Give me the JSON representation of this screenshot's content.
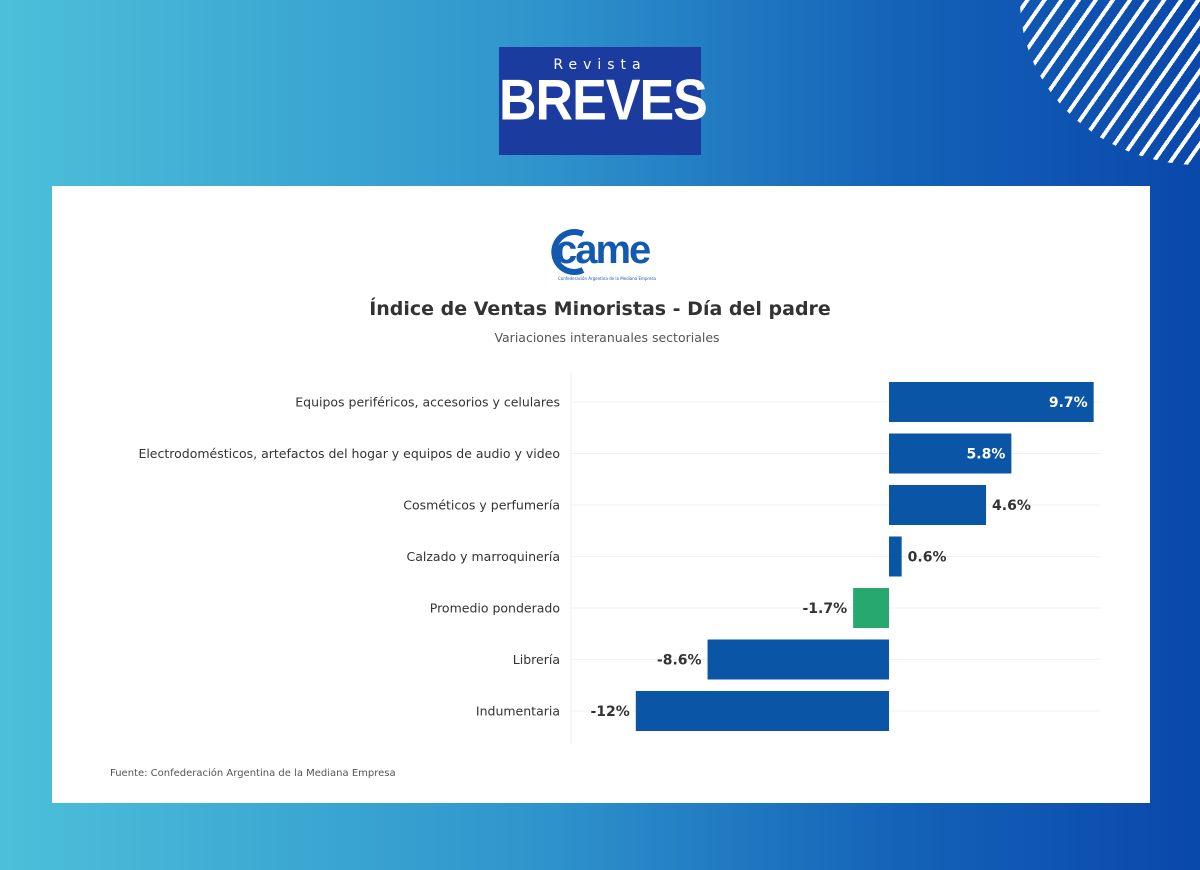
{
  "brand": {
    "top": "Revista",
    "name": "BREVES"
  },
  "came_logo": {
    "name": "came",
    "tagline": "Confederación Argentina de la Mediana Empresa"
  },
  "colors": {
    "positive": "#0a55a6",
    "average": "#27a86f",
    "background_left": "#4cc0da",
    "background_right": "#0a48ab"
  },
  "chart_data": {
    "type": "bar",
    "orientation": "horizontal",
    "title": "Índice de Ventas Minoristas - Día del padre",
    "subtitle": "Variaciones interanuales sectoriales",
    "categories": [
      "Equipos periféricos, accesorios y celulares",
      "Electrodomésticos, artefactos del hogar y equipos de audio y video",
      "Cosméticos y perfumería",
      "Calzado y marroquinería",
      "Promedio ponderado",
      "Librería",
      "Indumentaria"
    ],
    "values": [
      9.7,
      5.8,
      4.6,
      0.6,
      -1.7,
      -8.6,
      -12
    ],
    "data_labels": [
      "9.7%",
      "5.8%",
      "4.6%",
      "0.6%",
      "-1.7%",
      "-8.6%",
      "-12%"
    ],
    "highlight": "Promedio ponderado",
    "grid": true,
    "xlim": [
      -12,
      9.7
    ],
    "source": "Fuente: Confederación Argentina de la Mediana Empresa"
  }
}
